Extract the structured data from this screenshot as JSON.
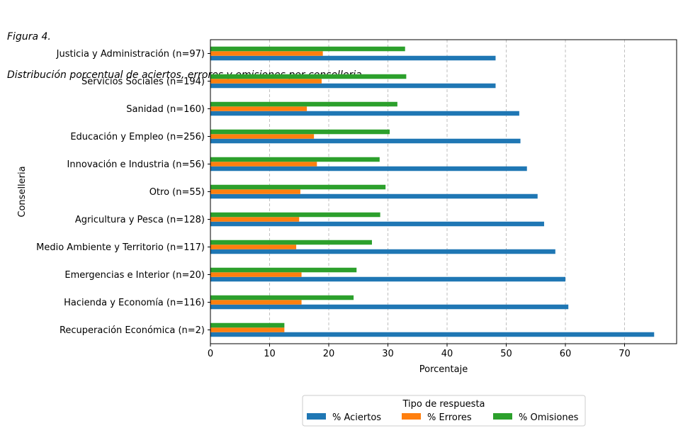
{
  "figure": {
    "label": "Figura 4.",
    "caption": "Distribución porcentual de aciertos, errores y omisiones por conselleria"
  },
  "chart_data": {
    "type": "bar",
    "orientation": "horizontal",
    "title": "",
    "xlabel": "Porcentaje",
    "ylabel": "Conselleria",
    "xlim": [
      0,
      78.8
    ],
    "xticks": [
      0,
      10,
      20,
      30,
      40,
      50,
      60,
      70
    ],
    "grid": "x-dashed",
    "categories": [
      "Justicia y Administración (n=97)",
      "Servicios Sociales (n=194)",
      "Sanidad (n=160)",
      "Educación y Empleo (n=256)",
      "Innovación e Industria (n=56)",
      "Otro (n=55)",
      "Agricultura y Pesca (n=128)",
      "Medio Ambiente y Territorio (n=117)",
      "Emergencias e Interior (n=20)",
      "Hacienda y Economía (n=116)",
      "Recuperación Económica (n=2)"
    ],
    "series": [
      {
        "name": "% Aciertos",
        "color": "#1f77b4",
        "values": [
          48.2,
          48.2,
          52.2,
          52.4,
          53.5,
          55.3,
          56.4,
          58.3,
          60.0,
          60.5,
          75.0
        ]
      },
      {
        "name": "% Errores",
        "color": "#ff7f0e",
        "values": [
          19.0,
          18.8,
          16.3,
          17.5,
          18.0,
          15.2,
          15.0,
          14.5,
          15.4,
          15.4,
          12.5
        ]
      },
      {
        "name": "% Omisiones",
        "color": "#2ca02c",
        "values": [
          32.9,
          33.1,
          31.6,
          30.3,
          28.6,
          29.6,
          28.7,
          27.3,
          24.7,
          24.2,
          12.5
        ]
      }
    ],
    "legend": {
      "title": "Tipo de respuesta",
      "placement": "bottom-center",
      "columns": 3
    }
  }
}
